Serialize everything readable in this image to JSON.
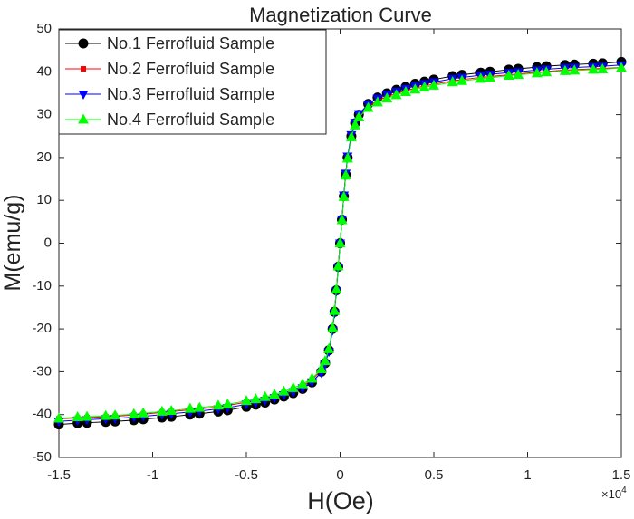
{
  "chart_data": {
    "type": "line",
    "title": "Magnetization Curve",
    "xlabel": "H(Oe)",
    "ylabel": "M(emu/g)",
    "x_multiplier_label": "×10",
    "x_multiplier_exp": "4",
    "xlim": [
      -1.5,
      1.5
    ],
    "ylim": [
      -50,
      50
    ],
    "xticks": [
      -1.5,
      -1,
      -0.5,
      0,
      0.5,
      1,
      1.5
    ],
    "xtick_labels": [
      "-1.5",
      "-1",
      "-0.5",
      "0",
      "0.5",
      "1",
      "1.5"
    ],
    "yticks": [
      -50,
      -40,
      -30,
      -20,
      -10,
      0,
      10,
      20,
      30,
      40,
      50
    ],
    "ytick_labels": [
      "-50",
      "-40",
      "-30",
      "-20",
      "-10",
      "0",
      "10",
      "20",
      "30",
      "40",
      "50"
    ],
    "grid": false,
    "legend_position": "top-left",
    "x": [
      -1.5,
      -1.4,
      -1.35,
      -1.25,
      -1.2,
      -1.1,
      -1.05,
      -0.95,
      -0.9,
      -0.8,
      -0.75,
      -0.65,
      -0.6,
      -0.5,
      -0.45,
      -0.4,
      -0.35,
      -0.3,
      -0.25,
      -0.2,
      -0.15,
      -0.1,
      -0.08,
      -0.06,
      -0.04,
      -0.03,
      -0.02,
      -0.01,
      0,
      0.01,
      0.02,
      0.03,
      0.04,
      0.06,
      0.08,
      0.1,
      0.15,
      0.2,
      0.25,
      0.3,
      0.35,
      0.4,
      0.45,
      0.5,
      0.6,
      0.65,
      0.75,
      0.8,
      0.9,
      0.95,
      1.05,
      1.1,
      1.2,
      1.25,
      1.35,
      1.4,
      1.5
    ],
    "series": [
      {
        "name": "No.1 Ferrofluid Sample",
        "color": "#000000",
        "marker": "circle",
        "values": [
          -42.3,
          -42,
          -41.9,
          -41.7,
          -41.6,
          -41.3,
          -41.1,
          -40.7,
          -40.5,
          -40,
          -39.8,
          -39.3,
          -39,
          -38.2,
          -37.7,
          -37.2,
          -36.5,
          -35.8,
          -35,
          -34,
          -32.5,
          -30,
          -28,
          -25,
          -20,
          -16,
          -11,
          -5.5,
          0,
          5.5,
          11,
          16,
          20,
          25,
          28,
          30,
          32.5,
          34,
          35,
          35.8,
          36.5,
          37.2,
          37.7,
          38.2,
          39,
          39.3,
          39.8,
          40,
          40.5,
          40.7,
          41.1,
          41.3,
          41.6,
          41.7,
          41.9,
          42,
          42.3
        ]
      },
      {
        "name": "No.2 Ferrofluid Sample",
        "color": "#ff0000",
        "marker": "square",
        "values": [
          -41.0,
          -40.8,
          -40.7,
          -40.5,
          -40.4,
          -40.1,
          -39.9,
          -39.5,
          -39.3,
          -38.9,
          -38.7,
          -38.2,
          -37.9,
          -37.1,
          -36.7,
          -36.2,
          -35.6,
          -34.9,
          -34.2,
          -33.3,
          -31.9,
          -29.6,
          -27.8,
          -25,
          -20,
          -16,
          -11,
          -5.5,
          0,
          5.5,
          11,
          16,
          20,
          25,
          27.8,
          29.6,
          31.9,
          33.3,
          34.2,
          34.9,
          35.6,
          36.2,
          36.7,
          37.1,
          37.9,
          38.2,
          38.7,
          38.9,
          39.3,
          39.5,
          39.9,
          40.1,
          40.4,
          40.5,
          40.7,
          40.8,
          41.0
        ]
      },
      {
        "name": "No.3 Ferrofluid Sample",
        "color": "#0000ff",
        "marker": "triangle-down",
        "values": [
          -41.6,
          -41.3,
          -41.2,
          -41.0,
          -40.9,
          -40.6,
          -40.4,
          -40.0,
          -39.8,
          -39.4,
          -39.2,
          -38.7,
          -38.4,
          -37.6,
          -37.2,
          -36.7,
          -36.1,
          -35.4,
          -34.7,
          -33.8,
          -32.4,
          -30.2,
          -28.2,
          -25.3,
          -20.3,
          -16.3,
          -11.2,
          -5.6,
          0,
          5.6,
          11.2,
          16.3,
          20.3,
          25.3,
          28.2,
          30.2,
          32.4,
          33.8,
          34.7,
          35.4,
          36.1,
          36.7,
          37.2,
          37.6,
          38.4,
          38.7,
          39.2,
          39.4,
          39.8,
          40.0,
          40.4,
          40.6,
          40.9,
          41.0,
          41.2,
          41.3,
          41.6
        ]
      },
      {
        "name": "No.4 Ferrofluid Sample",
        "color": "#00ff00",
        "marker": "triangle-up",
        "values": [
          -40.9,
          -40.6,
          -40.5,
          -40.3,
          -40.2,
          -39.9,
          -39.7,
          -39.3,
          -39.1,
          -38.6,
          -38.4,
          -37.9,
          -37.6,
          -36.8,
          -36.4,
          -35.9,
          -35.3,
          -34.6,
          -33.8,
          -32.9,
          -31.6,
          -29.4,
          -27.5,
          -24.7,
          -19.8,
          -15.8,
          -10.8,
          -5.4,
          0,
          5.4,
          10.8,
          15.8,
          19.8,
          24.7,
          27.5,
          29.4,
          31.6,
          32.9,
          33.8,
          34.6,
          35.3,
          35.9,
          36.4,
          36.8,
          37.6,
          37.9,
          38.4,
          38.6,
          39.1,
          39.3,
          39.7,
          39.9,
          40.2,
          40.3,
          40.5,
          40.6,
          40.9
        ]
      }
    ]
  }
}
